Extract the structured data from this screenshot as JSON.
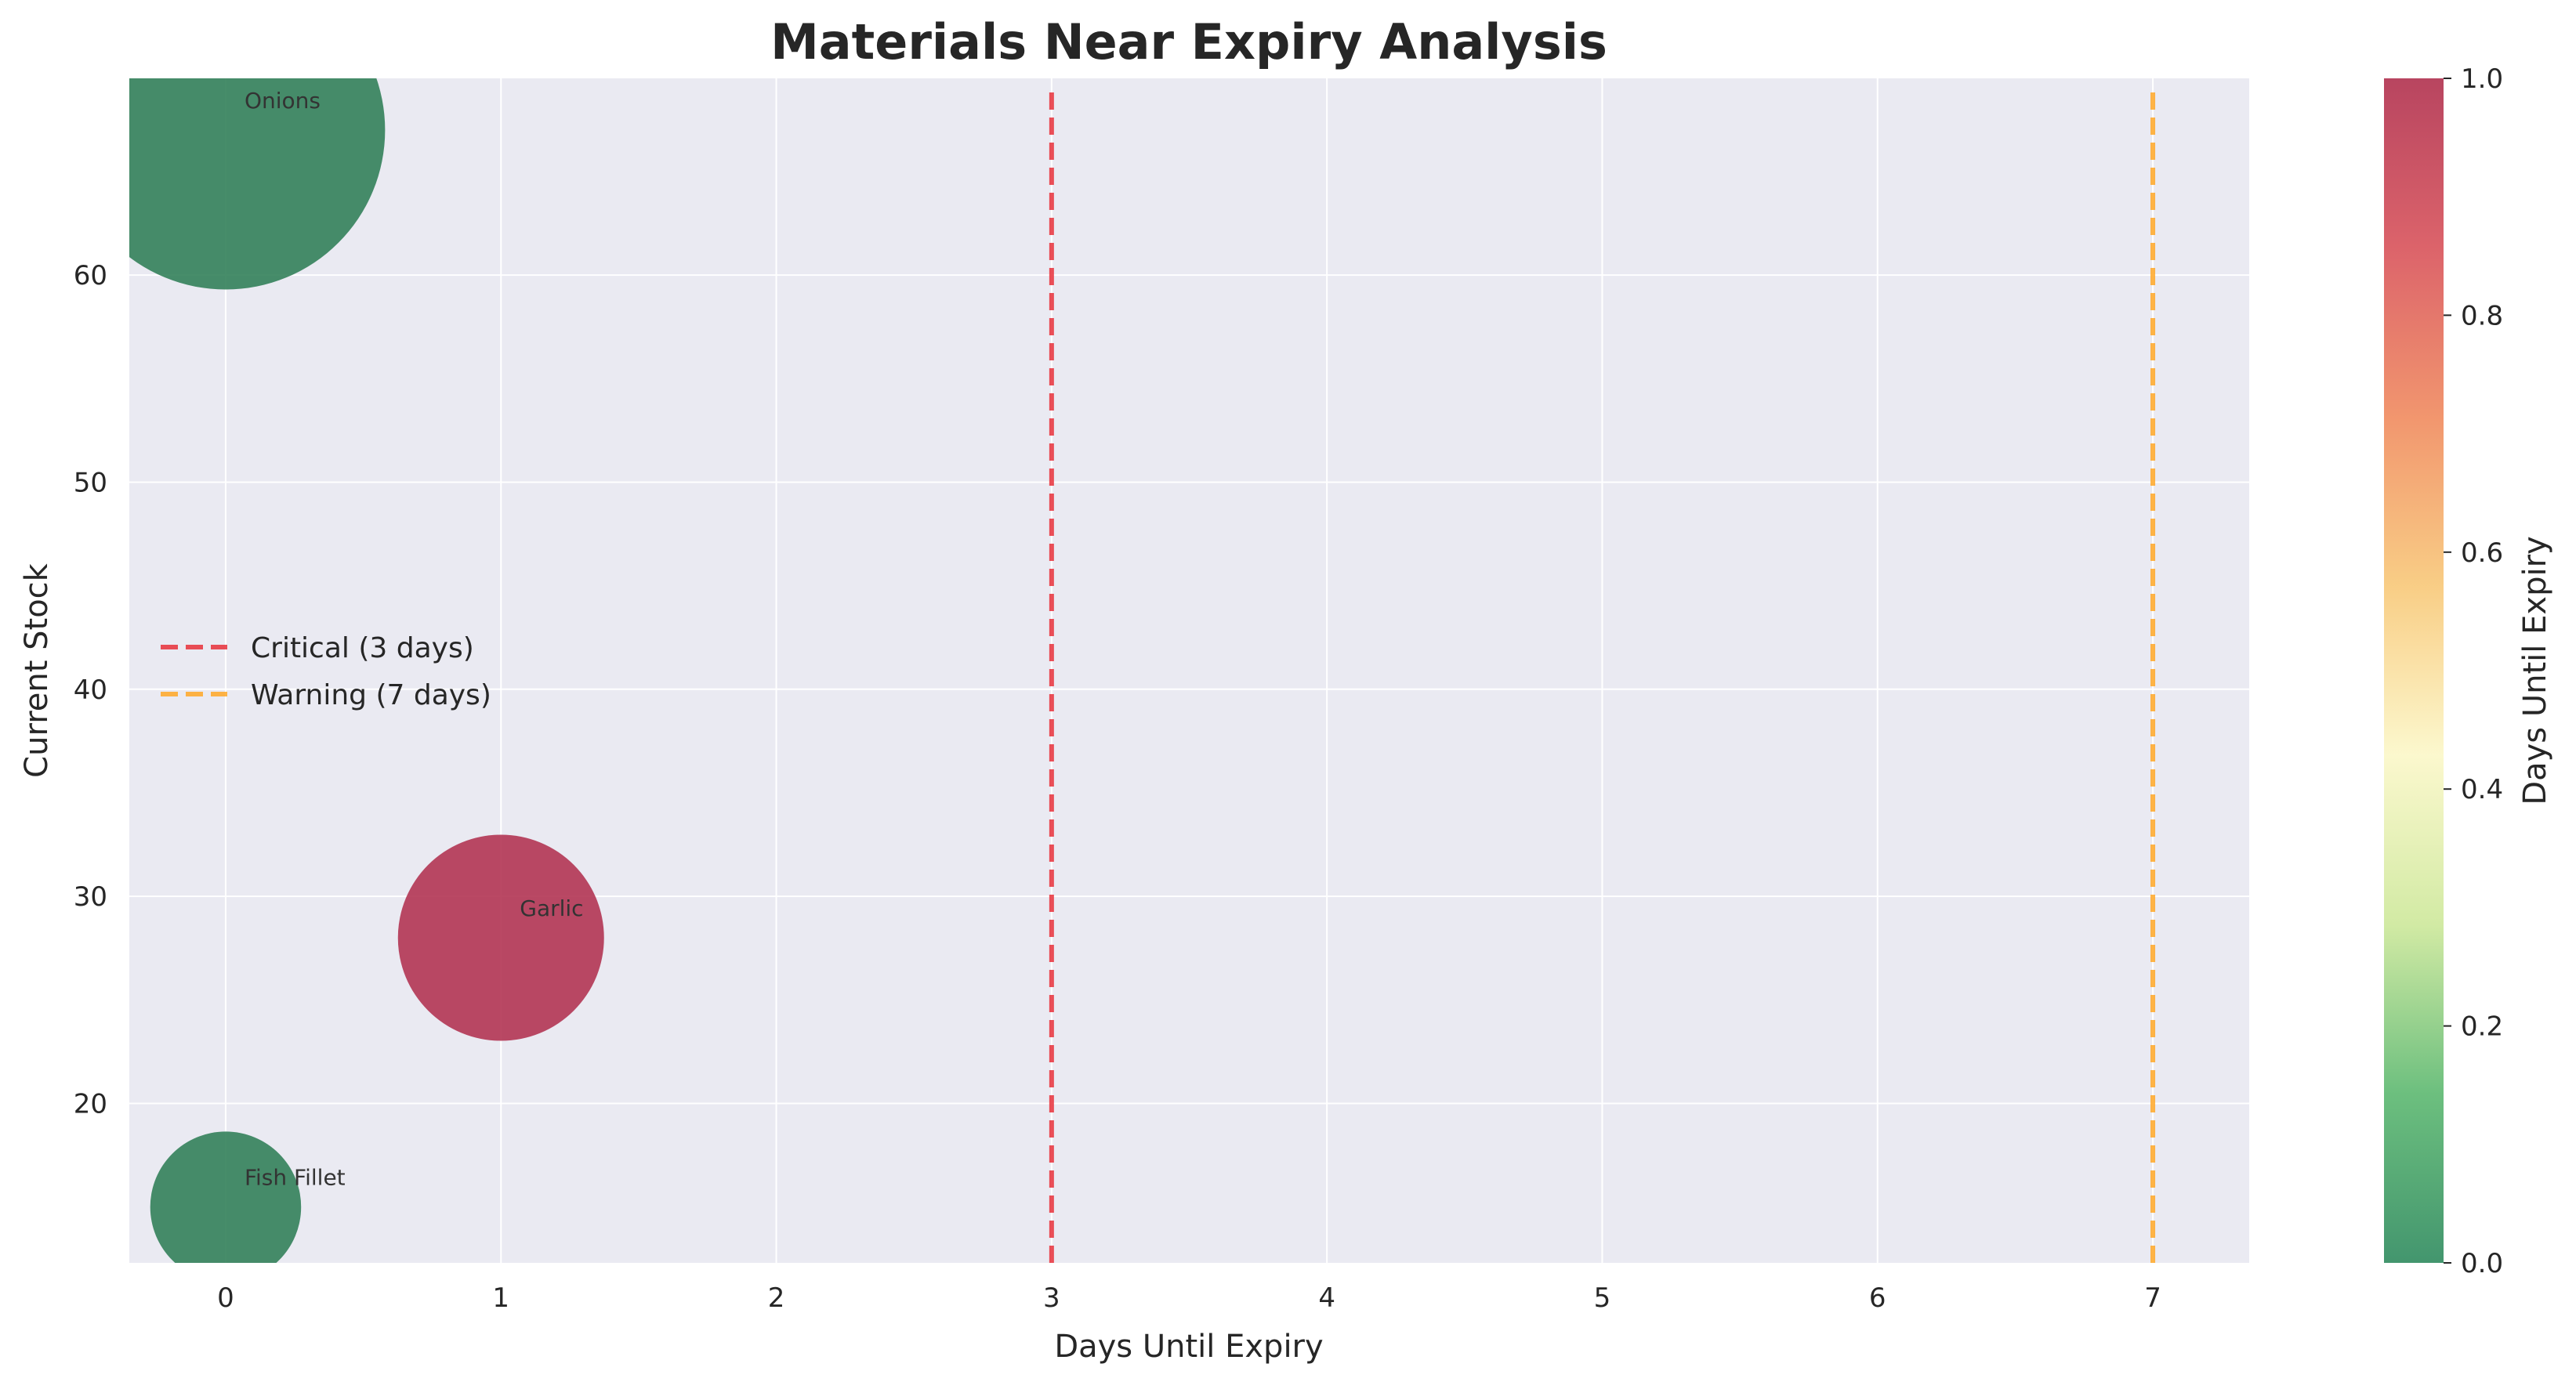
{
  "chart_data": {
    "type": "scatter",
    "title": "Materials Near Expiry Analysis",
    "xlabel": "Days Until Expiry",
    "ylabel": "Current Stock",
    "xlim": [
      -0.35,
      7.35
    ],
    "ylim": [
      12.3,
      69.5
    ],
    "x_ticks": [
      0,
      1,
      2,
      3,
      4,
      5,
      6,
      7
    ],
    "y_ticks": [
      20,
      30,
      40,
      50,
      60
    ],
    "grid": true,
    "points": [
      {
        "label": "Onions",
        "x": 0,
        "y": 67,
        "size": 67,
        "color_value": 0
      },
      {
        "label": "Garlic",
        "x": 1,
        "y": 28,
        "size": 28,
        "color_value": 1
      },
      {
        "label": "Fish Fillet",
        "x": 0,
        "y": 15,
        "size": 15,
        "color_value": 0
      }
    ],
    "reference_lines": [
      {
        "label": "Critical (3 days)",
        "x": 3,
        "color": "#e8303a",
        "style": "dashed"
      },
      {
        "label": "Warning (7 days)",
        "x": 7,
        "color": "#ffa726",
        "style": "dashed"
      }
    ],
    "legend_position": "center-left",
    "colorbar": {
      "label": "Days Until Expiry",
      "range": [
        0,
        1
      ],
      "ticks": [
        "0.0",
        "0.2",
        "0.4",
        "0.6",
        "0.8",
        "1.0"
      ],
      "colormap": "RdYlGn_r",
      "stops": [
        "#2e8a5e",
        "#5cb870",
        "#cde89a",
        "#fbf7c8",
        "#f8c878",
        "#f08a5e",
        "#d8525a",
        "#b0304e"
      ]
    },
    "colors": {
      "plot_background": "#eaeaf2",
      "grid": "#ffffff",
      "point_low": "#2e7d55",
      "point_high": "#b0304e"
    }
  }
}
